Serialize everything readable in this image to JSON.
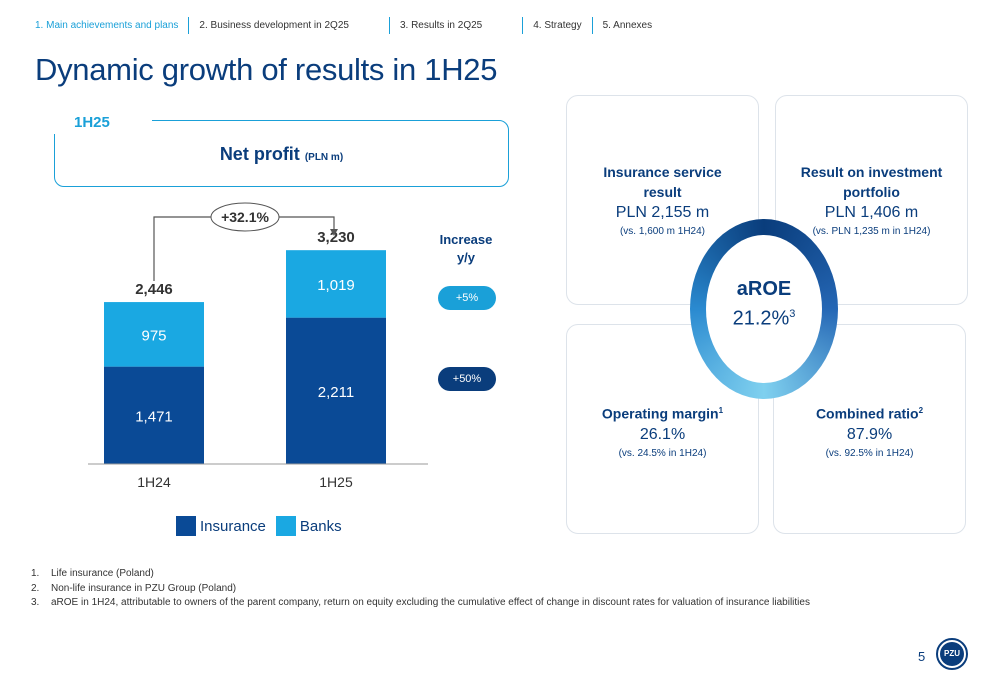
{
  "nav": {
    "items": [
      "1. Main achievements and plans",
      "2. Business development in 2Q25",
      "3. Results in 2Q25",
      "4. Strategy",
      "5. Annexes"
    ]
  },
  "page_title": "Dynamic growth of results in 1H25",
  "net_profit": {
    "period": "1H25",
    "title": "Net profit",
    "unit": "(PLN m)",
    "growth_label": "+32.1%",
    "increase_header": [
      "Increase",
      "y/y"
    ],
    "increases": [
      {
        "label": "+5%",
        "color": "#1aa0d8"
      },
      {
        "label": "+50%",
        "color": "#0a3d7c"
      }
    ]
  },
  "chart_data": {
    "type": "bar",
    "stacked": true,
    "categories": [
      "1H24",
      "1H25"
    ],
    "series": [
      {
        "name": "Insurance",
        "values": [
          1471,
          2211
        ],
        "labels": [
          "1,471",
          "2,211"
        ],
        "color": "#0a4a96"
      },
      {
        "name": "Banks",
        "values": [
          975,
          1019
        ],
        "labels": [
          "975",
          "1,019"
        ],
        "color": "#1aa8e2"
      }
    ],
    "totals": [
      "2,446",
      "3,230"
    ],
    "ylim": [
      0,
      3500
    ],
    "grid": false,
    "legend": "bottom"
  },
  "cards": {
    "insurance": {
      "title": [
        "Insurance service",
        "result"
      ],
      "value": "PLN 2,155 m",
      "comparison": "(vs.  1,600 m 1H24)"
    },
    "investment": {
      "title": [
        "Result on investment",
        "portfolio"
      ],
      "value": "PLN 1,406 m",
      "comparison": "(vs. PLN 1,235 m in 1H24)"
    },
    "operating": {
      "title": "Operating margin",
      "sup": "1",
      "value": "26.1%",
      "comparison": "(vs. 24.5% in 1H24)"
    },
    "combined": {
      "title": "Combined ratio",
      "sup": "2",
      "value": "87.9%",
      "comparison": "(vs. 92.5% in 1H24)"
    }
  },
  "roe": {
    "label": "aROE",
    "value": "21.2%",
    "sup": "3"
  },
  "footnotes": [
    {
      "num": "1.",
      "text": "Life insurance (Poland)"
    },
    {
      "num": "2.",
      "text": "Non-life insurance in PZU Group (Poland)"
    },
    {
      "num": "3.",
      "text": "aROE in 1H24, attributable to owners of the parent company, return on equity excluding the cumulative effect of change in discount rates for valuation of insurance liabilities"
    }
  ],
  "page_number": "5",
  "logo_text": "PZU"
}
